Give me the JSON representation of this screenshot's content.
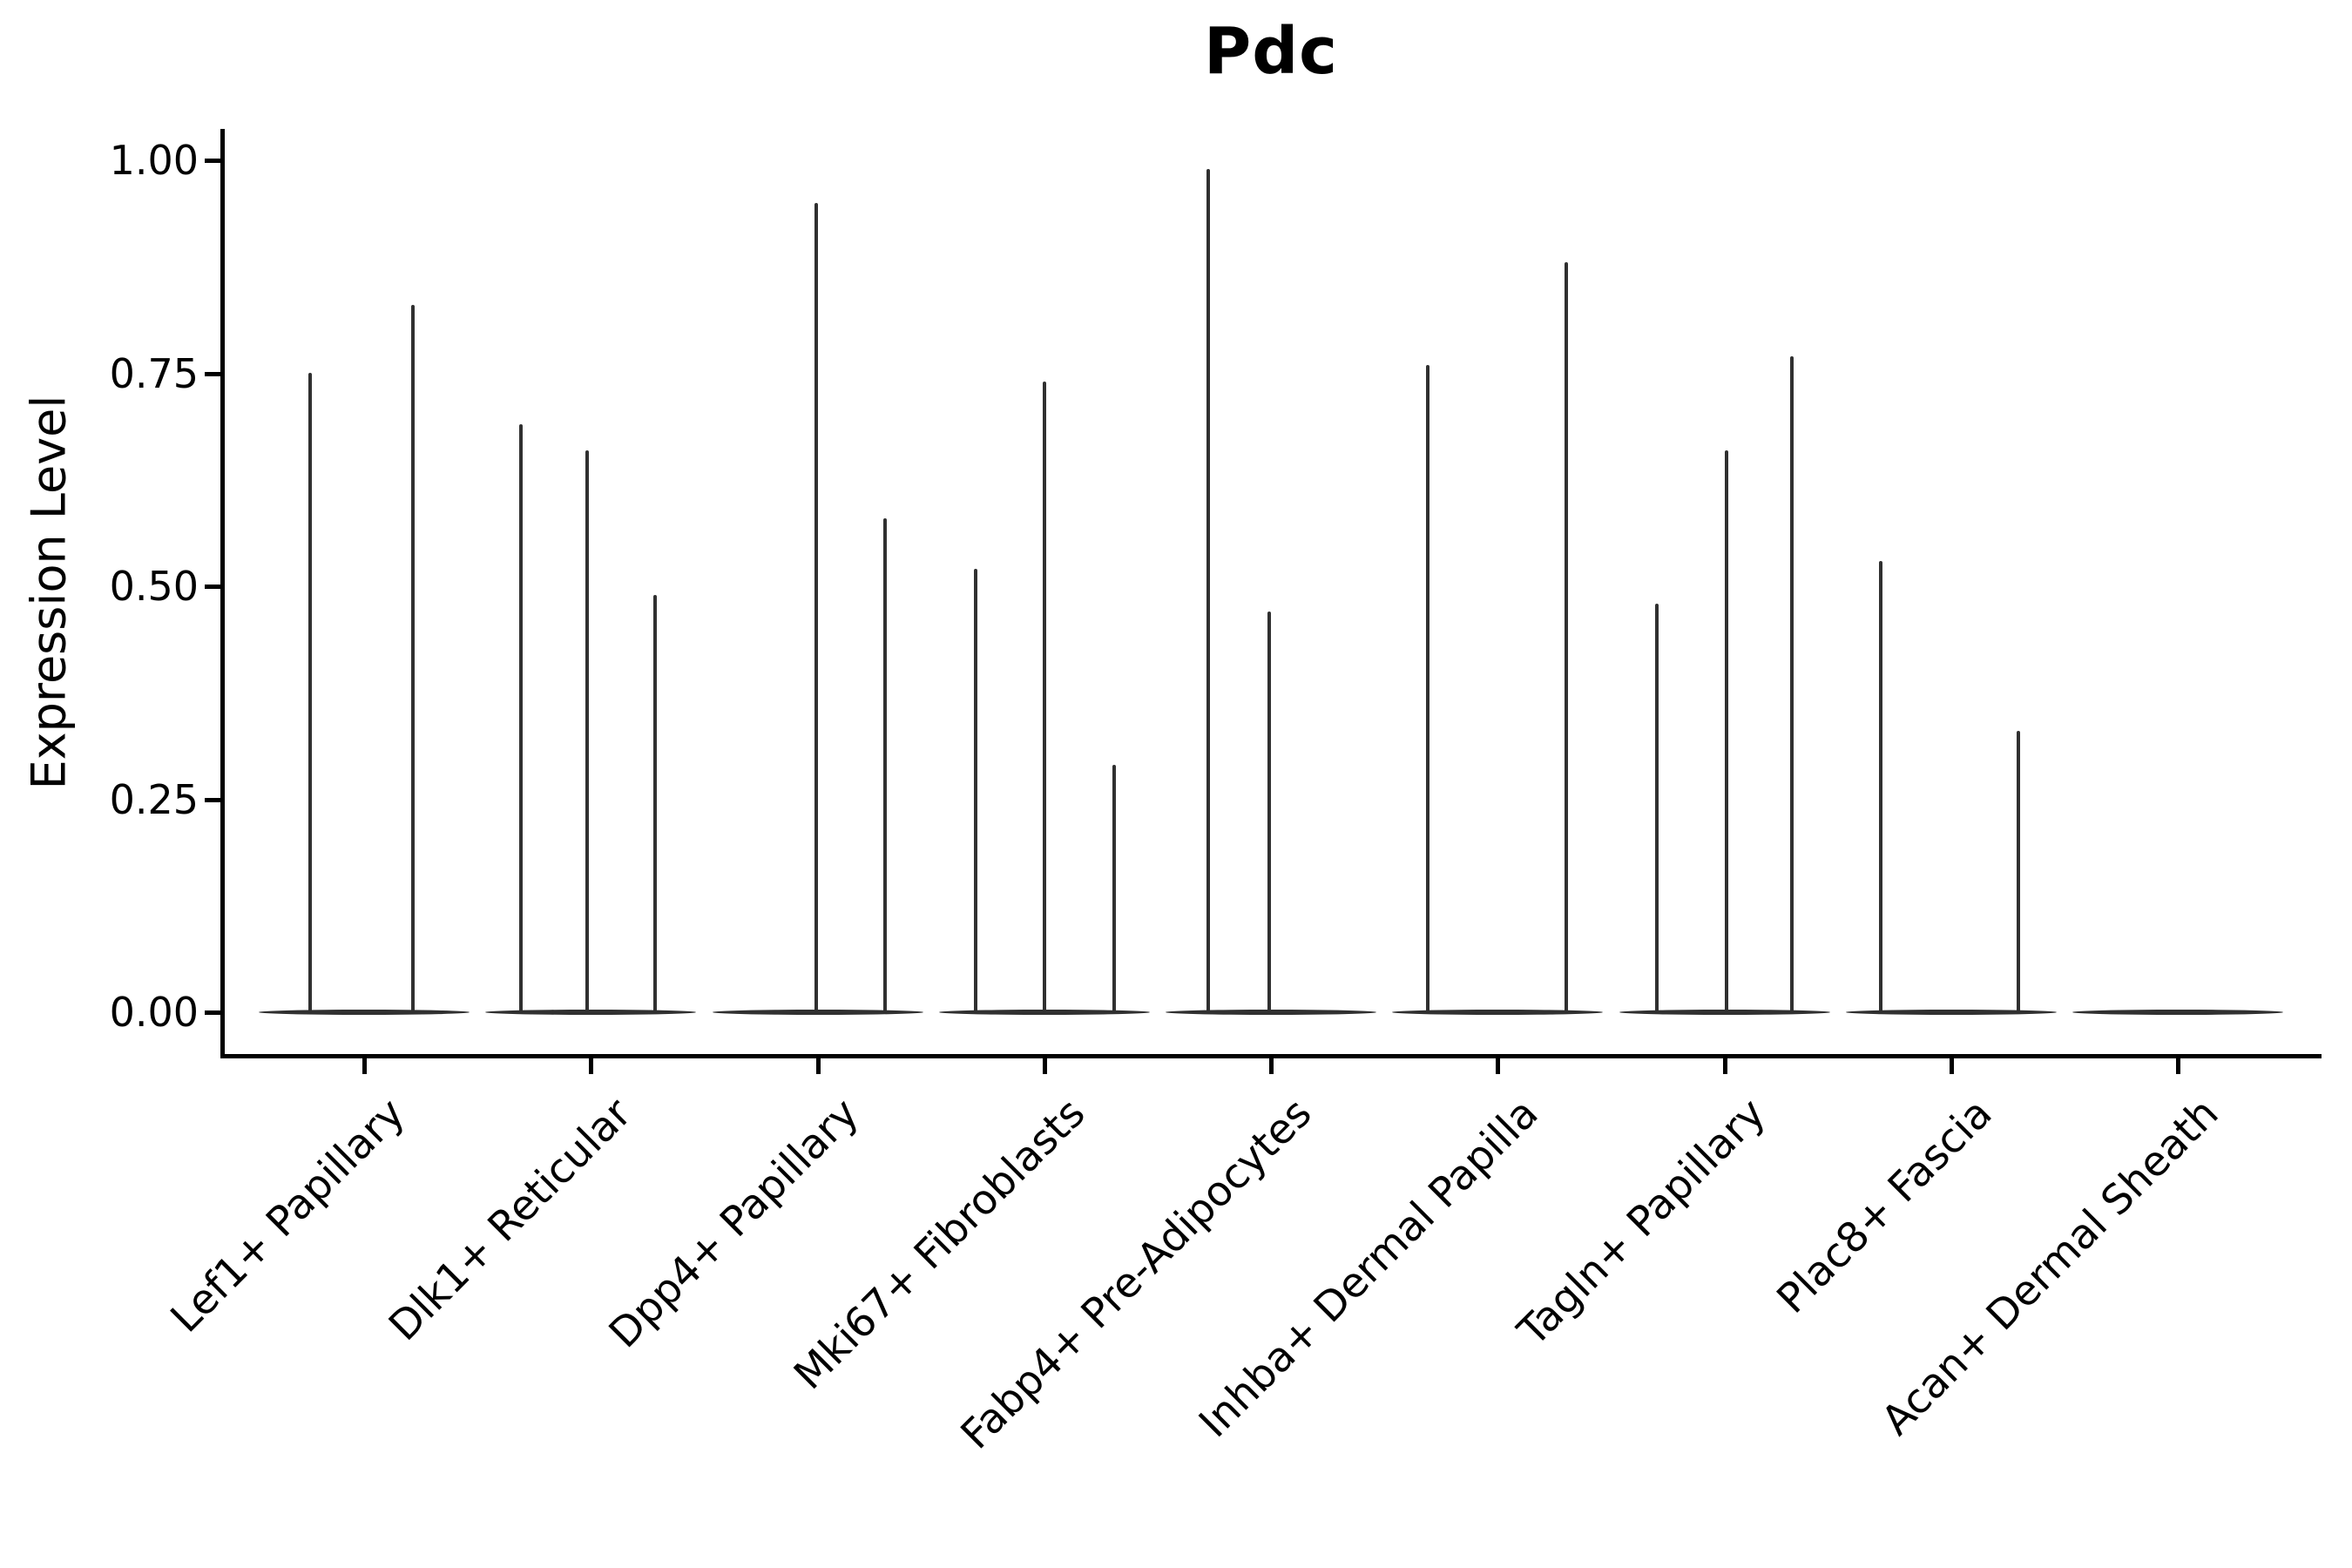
{
  "chart_data": {
    "type": "violin",
    "title": "Pdc",
    "ylabel": "Expression Level",
    "xlabel": "",
    "ylim": [
      0.0,
      1.0
    ],
    "yticks": [
      "0.00",
      "0.25",
      "0.50",
      "0.75",
      "1.00"
    ],
    "grid": false,
    "legend": "none",
    "violin_color": "#303030",
    "axis_color": "#000000",
    "categories": [
      "Lef1+ Papillary",
      "Dlk1+ Reticular",
      "Dpp4+ Papillary",
      "Mki67+ Fibroblasts",
      "Fabp4+ Pre-Adipocytes",
      "Inhba+ Dermal Papilla",
      "Tagln+ Papillary",
      "Plac8+ Fascia",
      "Acan+ Dermal Sheath"
    ],
    "series": [
      {
        "category": "Lef1+ Papillary",
        "violins": [
          {
            "offset": -62,
            "max": 0.75
          },
          {
            "offset": 56,
            "max": 0.83
          }
        ]
      },
      {
        "category": "Dlk1+ Reticular",
        "violins": [
          {
            "offset": -80,
            "max": 0.69
          },
          {
            "offset": -4,
            "max": 0.66
          },
          {
            "offset": 74,
            "max": 0.49
          }
        ]
      },
      {
        "category": "Dpp4+ Papillary",
        "violins": [
          {
            "offset": -2,
            "max": 0.95
          },
          {
            "offset": 77,
            "max": 0.58
          }
        ]
      },
      {
        "category": "Mki67+ Fibroblasts",
        "violins": [
          {
            "offset": -79,
            "max": 0.52
          },
          {
            "offset": 0,
            "max": 0.74
          },
          {
            "offset": 80,
            "max": 0.29
          }
        ]
      },
      {
        "category": "Fabp4+ Pre-Adipocytes",
        "violins": [
          {
            "offset": -72,
            "max": 0.99
          },
          {
            "offset": -2,
            "max": 0.47
          }
        ]
      },
      {
        "category": "Inhba+ Dermal Papilla",
        "violins": [
          {
            "offset": -80,
            "max": 0.76
          },
          {
            "offset": 79,
            "max": 0.88
          }
        ]
      },
      {
        "category": "Tagln+ Papillary",
        "violins": [
          {
            "offset": -78,
            "max": 0.48
          },
          {
            "offset": 2,
            "max": 0.66
          },
          {
            "offset": 77,
            "max": 0.77
          }
        ]
      },
      {
        "category": "Plac8+ Fascia",
        "violins": [
          {
            "offset": -81,
            "max": 0.53
          },
          {
            "offset": 77,
            "max": 0.33
          }
        ]
      },
      {
        "category": "Acan+ Dermal Sheath",
        "violins": []
      }
    ]
  }
}
